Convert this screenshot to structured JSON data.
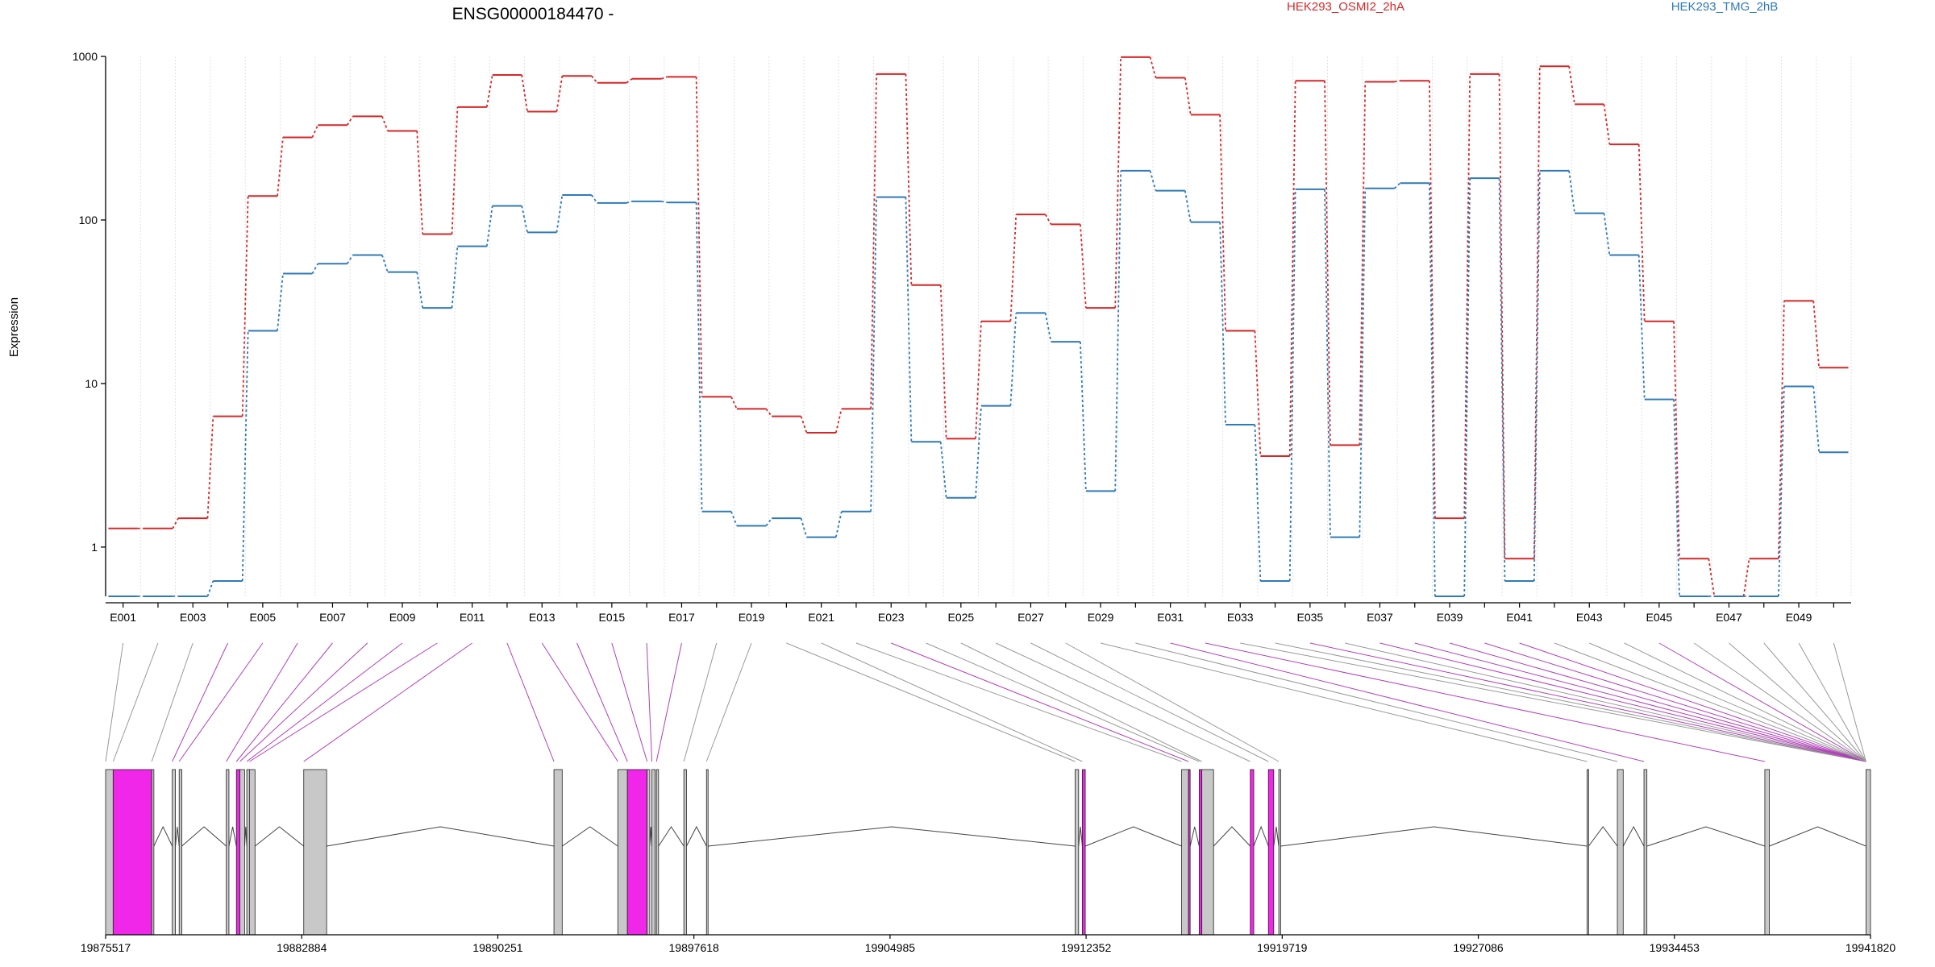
{
  "chart_data": {
    "type": "line",
    "title": "ENSG00000184470 -",
    "ylabel": "Expression",
    "yscale": "log",
    "ylim": [
      0.5,
      1000
    ],
    "y_ticks": [
      "1000",
      "100",
      "10",
      "1"
    ],
    "y_tick_values": [
      1000,
      100,
      10,
      1
    ],
    "grid": "vertical",
    "legend_position": "top-right",
    "colors": {
      "HEK293_OSMI2_2hA": "#d62728",
      "HEK293_TMG_2hB": "#2f7ab8",
      "exon_gray": "#c8c8c8",
      "exon_highlight": "#f026e8",
      "connector_highlight": "#b040b8"
    },
    "exons": [
      "E001",
      "E002",
      "E003",
      "E004",
      "E005",
      "E006",
      "E007",
      "E008",
      "E009",
      "E010",
      "E011",
      "E012",
      "E013",
      "E014",
      "E015",
      "E016",
      "E017",
      "E018",
      "E019",
      "E020",
      "E021",
      "E022",
      "E023",
      "E024",
      "E025",
      "E026",
      "E027",
      "E028",
      "E029",
      "E030",
      "E031",
      "E032",
      "E033",
      "E034",
      "E035",
      "E036",
      "E037",
      "E038",
      "E039",
      "E040",
      "E041",
      "E042",
      "E043",
      "E044",
      "E045",
      "E046",
      "E047",
      "E048",
      "E049",
      "E050"
    ],
    "exon_tick_labels": [
      "E001",
      "E003",
      "E005",
      "E007",
      "E009",
      "E011",
      "E013",
      "E015",
      "E017",
      "E019",
      "E021",
      "E023",
      "E025",
      "E027",
      "E029",
      "E031",
      "E033",
      "E035",
      "E037",
      "E039",
      "E041",
      "E043",
      "E045",
      "E047",
      "E049"
    ],
    "series": [
      {
        "name": "HEK293_OSMI2_2hA",
        "values": [
          1.3,
          1.3,
          1.5,
          6.3,
          140,
          320,
          380,
          430,
          350,
          82,
          490,
          770,
          460,
          760,
          690,
          730,
          750,
          8.3,
          7.0,
          6.3,
          5.0,
          7.0,
          780,
          40,
          4.6,
          24,
          108,
          94,
          29,
          990,
          740,
          440,
          21,
          3.6,
          710,
          4.2,
          700,
          710,
          1.5,
          780,
          0.85,
          870,
          510,
          290,
          24,
          0.85,
          0.5,
          0.85,
          32,
          12.5
        ]
      },
      {
        "name": "HEK293_TMG_2hB",
        "values": [
          0.5,
          0.5,
          0.5,
          0.62,
          21,
          47,
          54,
          61,
          48,
          29,
          69,
          122,
          84,
          142,
          127,
          130,
          128,
          1.65,
          1.35,
          1.5,
          1.15,
          1.65,
          138,
          4.4,
          2.0,
          7.3,
          27,
          18,
          2.2,
          200,
          151,
          97,
          5.6,
          0.62,
          154,
          1.15,
          156,
          168,
          0.5,
          180,
          0.62,
          200,
          110,
          61,
          8,
          0.5,
          0.5,
          0.5,
          9.6,
          3.8
        ]
      }
    ],
    "genome": {
      "start": 19875517,
      "end": 19941820,
      "tick_labels": [
        "19875517",
        "19882884",
        "19890251",
        "19897618",
        "19904985",
        "19912352",
        "19919719",
        "19927086",
        "19934453",
        "19941820"
      ],
      "tick_values": [
        19875517,
        19882884,
        19890251,
        19897618,
        19904985,
        19912352,
        19919719,
        19927086,
        19934453,
        19941820
      ],
      "exons": [
        {
          "s": 19875517,
          "e": 19875800,
          "hl": false
        },
        {
          "s": 19875800,
          "e": 19877250,
          "hl": true
        },
        {
          "s": 19877250,
          "e": 19877330,
          "hl": false
        },
        {
          "s": 19878020,
          "e": 19878140,
          "hl": false
        },
        {
          "s": 19878280,
          "e": 19878380,
          "hl": false
        },
        {
          "s": 19880050,
          "e": 19880150,
          "hl": false
        },
        {
          "s": 19880430,
          "e": 19880560,
          "hl": true
        },
        {
          "s": 19880560,
          "e": 19880740,
          "hl": false
        },
        {
          "s": 19880820,
          "e": 19880920,
          "hl": false
        },
        {
          "s": 19880920,
          "e": 19881130,
          "hl": false
        },
        {
          "s": 19882960,
          "e": 19883820,
          "hl": false
        },
        {
          "s": 19892360,
          "e": 19892670,
          "hl": false
        },
        {
          "s": 19894760,
          "e": 19895120,
          "hl": false
        },
        {
          "s": 19895120,
          "e": 19895860,
          "hl": true
        },
        {
          "s": 19895860,
          "e": 19895960,
          "hl": false
        },
        {
          "s": 19896040,
          "e": 19896160,
          "hl": false
        },
        {
          "s": 19896210,
          "e": 19896290,
          "hl": false
        },
        {
          "s": 19897240,
          "e": 19897340,
          "hl": false
        },
        {
          "s": 19898090,
          "e": 19898150,
          "hl": false
        },
        {
          "s": 19911940,
          "e": 19912070,
          "hl": false
        },
        {
          "s": 19912210,
          "e": 19912320,
          "hl": true
        },
        {
          "s": 19915940,
          "e": 19916200,
          "hl": false
        },
        {
          "s": 19916200,
          "e": 19916260,
          "hl": true
        },
        {
          "s": 19916600,
          "e": 19916700,
          "hl": true
        },
        {
          "s": 19916700,
          "e": 19917140,
          "hl": false
        },
        {
          "s": 19918520,
          "e": 19918650,
          "hl": true
        },
        {
          "s": 19919200,
          "e": 19919400,
          "hl": true
        },
        {
          "s": 19919590,
          "e": 19919660,
          "hl": false
        },
        {
          "s": 19931170,
          "e": 19931230,
          "hl": false
        },
        {
          "s": 19932310,
          "e": 19932530,
          "hl": false
        },
        {
          "s": 19933310,
          "e": 19933420,
          "hl": false
        },
        {
          "s": 19937850,
          "e": 19938020,
          "hl": false
        },
        {
          "s": 19941650,
          "e": 19941820,
          "hl": false
        }
      ]
    }
  }
}
